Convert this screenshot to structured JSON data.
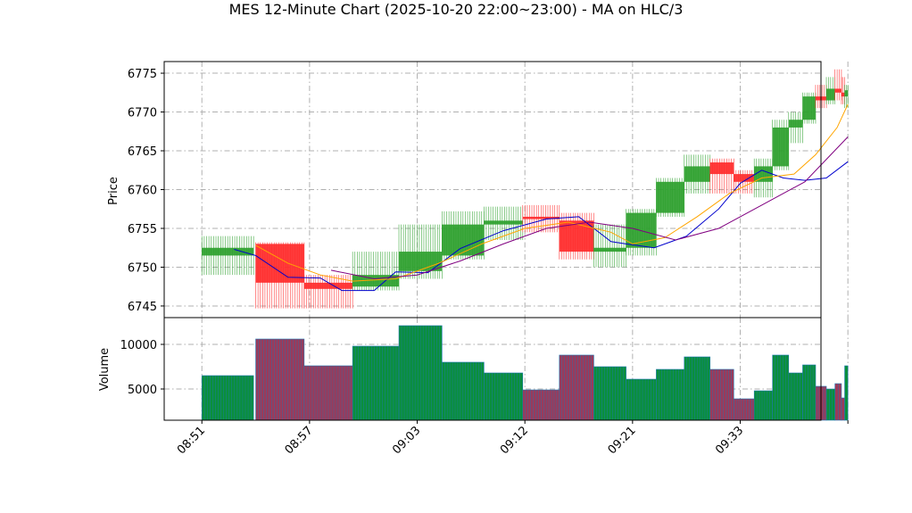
{
  "chart_data": {
    "type": "candlestick",
    "title": "MES 12-Minute Chart (2025-10-20 22:00~23:00) - MA on HLC/3",
    "price_panel": {
      "ylabel": "Price",
      "ylim": [
        6743.5,
        6776.5
      ],
      "yticks": [
        6745,
        6750,
        6755,
        6760,
        6765,
        6770,
        6775
      ],
      "grid": true
    },
    "volume_panel": {
      "ylabel": "Volume",
      "ylim": [
        1500,
        13000
      ],
      "yticks": [
        5000,
        10000
      ],
      "yticklabels": [
        "5000",
        "10000"
      ],
      "grid": true
    },
    "x_axis": {
      "range": [
        -3.5,
        57.5
      ],
      "ticks": [
        0,
        10,
        20,
        30,
        40,
        50,
        60
      ],
      "ticklabels": [
        "08:51",
        "08:57",
        "09:03",
        "09:12",
        "09:21",
        "09:33",
        ""
      ]
    },
    "colors": {
      "up": "#2ca02c",
      "down": "#ff2a2a",
      "vol_up": "#0a8f3c",
      "vol_down": "#9b3a5a",
      "vol_edge": "#1f77b4",
      "ma_fast": "#0000cd",
      "ma_mid": "#ffa500",
      "ma_slow": "#800080"
    },
    "bars": [
      {
        "x": 0,
        "w": 4.8,
        "open": 6751.5,
        "high": 6754.0,
        "low": 6749.0,
        "close": 6752.5,
        "volume": 6500
      },
      {
        "x": 5,
        "w": 4.5,
        "open": 6753.0,
        "high": 6753.2,
        "low": 6744.7,
        "close": 6748.0,
        "volume": 10600
      },
      {
        "x": 9.5,
        "w": 4.5,
        "open": 6748.0,
        "high": 6749.0,
        "low": 6744.7,
        "close": 6747.2,
        "volume": 7600
      },
      {
        "x": 14,
        "w": 4.3,
        "open": 6747.5,
        "high": 6752.0,
        "low": 6747.0,
        "close": 6749.0,
        "volume": 9800
      },
      {
        "x": 18.3,
        "w": 4.0,
        "open": 6749.5,
        "high": 6755.5,
        "low": 6748.5,
        "close": 6752.0,
        "volume": 12100
      },
      {
        "x": 22.3,
        "w": 3.9,
        "open": 6751.5,
        "high": 6757.2,
        "low": 6751.0,
        "close": 6755.5,
        "volume": 8000
      },
      {
        "x": 26.2,
        "w": 3.6,
        "open": 6755.5,
        "high": 6757.8,
        "low": 6753.5,
        "close": 6756.0,
        "volume": 6800
      },
      {
        "x": 29.8,
        "w": 3.4,
        "open": 6756.5,
        "high": 6758.0,
        "low": 6754.5,
        "close": 6756.2,
        "volume": 4900
      },
      {
        "x": 33.2,
        "w": 3.2,
        "open": 6756.0,
        "high": 6757.0,
        "low": 6751.0,
        "close": 6752.0,
        "volume": 8800
      },
      {
        "x": 36.4,
        "w": 3.0,
        "open": 6752.0,
        "high": 6755.5,
        "low": 6750.0,
        "close": 6752.5,
        "volume": 7500
      },
      {
        "x": 39.4,
        "w": 2.8,
        "open": 6752.5,
        "high": 6757.5,
        "low": 6751.5,
        "close": 6757.0,
        "volume": 6100
      },
      {
        "x": 42.2,
        "w": 2.6,
        "open": 6757.0,
        "high": 6761.5,
        "low": 6756.5,
        "close": 6761.0,
        "volume": 7200
      },
      {
        "x": 44.8,
        "w": 2.4,
        "open": 6761.0,
        "high": 6764.5,
        "low": 6759.5,
        "close": 6763.0,
        "volume": 8600
      },
      {
        "x": 47.2,
        "w": 2.2,
        "open": 6763.5,
        "high": 6764.0,
        "low": 6759.5,
        "close": 6762.0,
        "volume": 7200
      },
      {
        "x": 49.4,
        "w": 1.9,
        "open": 6762.0,
        "high": 6762.5,
        "low": 6759.5,
        "close": 6761.0,
        "volume": 3900
      },
      {
        "x": 51.3,
        "w": 1.7,
        "open": 6761.0,
        "high": 6764.0,
        "low": 6759.0,
        "close": 6763.0,
        "volume": 4800
      },
      {
        "x": 53.0,
        "w": 1.5,
        "open": 6763.0,
        "high": 6769.0,
        "low": 6762.5,
        "close": 6768.0,
        "volume": 8800
      },
      {
        "x": 54.5,
        "w": 1.3,
        "open": 6768.0,
        "high": 6770.0,
        "low": 6766.0,
        "close": 6769.0,
        "volume": 6800
      },
      {
        "x": 55.8,
        "w": 1.2,
        "open": 6769.0,
        "high": 6772.5,
        "low": 6768.5,
        "close": 6772.0,
        "volume": 7700
      },
      {
        "x": 57.0,
        "w": 1.0,
        "open": 6772.0,
        "high": 6773.5,
        "low": 6770.5,
        "close": 6771.5,
        "volume": 5300
      },
      {
        "x": 58.0,
        "w": 0.8,
        "open": 6771.5,
        "high": 6774.5,
        "low": 6771.0,
        "close": 6773.0,
        "volume": 5000
      },
      {
        "x": 58.8,
        "w": 0.6,
        "open": 6773.0,
        "high": 6775.5,
        "low": 6771.5,
        "close": 6772.5,
        "volume": 5600
      },
      {
        "x": 59.4,
        "w": 0.3,
        "open": 6772.5,
        "high": 6774.5,
        "low": 6771.0,
        "close": 6772.0,
        "volume": 4000
      },
      {
        "x": 59.7,
        "w": 0.3,
        "open": 6772.0,
        "high": 6773.5,
        "low": 6770.5,
        "close": 6772.8,
        "volume": 7600
      }
    ],
    "ma_series": [
      {
        "key": "ma_fast",
        "x": [
          3,
          5,
          8,
          11,
          13,
          16,
          18,
          21,
          24,
          28,
          32,
          35,
          38,
          39.4,
          42,
          45,
          48,
          50,
          52,
          54,
          56,
          58,
          60
        ],
        "y": [
          6752.3,
          6751.5,
          6748.7,
          6748.6,
          6747.0,
          6747.0,
          6749.4,
          6749.3,
          6752.4,
          6754.7,
          6756.2,
          6756.5,
          6753.3,
          6753.0,
          6752.5,
          6754.0,
          6757.5,
          6760.8,
          6762.5,
          6761.5,
          6761.2,
          6761.5,
          6763.6
        ]
      },
      {
        "key": "ma_mid",
        "x": [
          5,
          8,
          11,
          14,
          18,
          22,
          26,
          30,
          34,
          38,
          40,
          43,
          46,
          49,
          52,
          55,
          57,
          59,
          60
        ],
        "y": [
          6752.8,
          6750.5,
          6749.0,
          6748.2,
          6748.5,
          6750.5,
          6753.0,
          6755.0,
          6755.8,
          6754.5,
          6753.0,
          6753.8,
          6756.5,
          6759.5,
          6761.5,
          6762.0,
          6764.5,
          6768.0,
          6771.0
        ]
      },
      {
        "key": "ma_slow",
        "x": [
          12,
          16,
          20,
          24,
          28,
          32,
          36,
          40,
          44,
          48,
          52,
          56,
          60
        ],
        "y": [
          6749.6,
          6748.5,
          6749.0,
          6750.8,
          6753.0,
          6755.0,
          6755.8,
          6755.0,
          6753.5,
          6755.0,
          6758.0,
          6761.0,
          6766.8
        ]
      }
    ]
  }
}
